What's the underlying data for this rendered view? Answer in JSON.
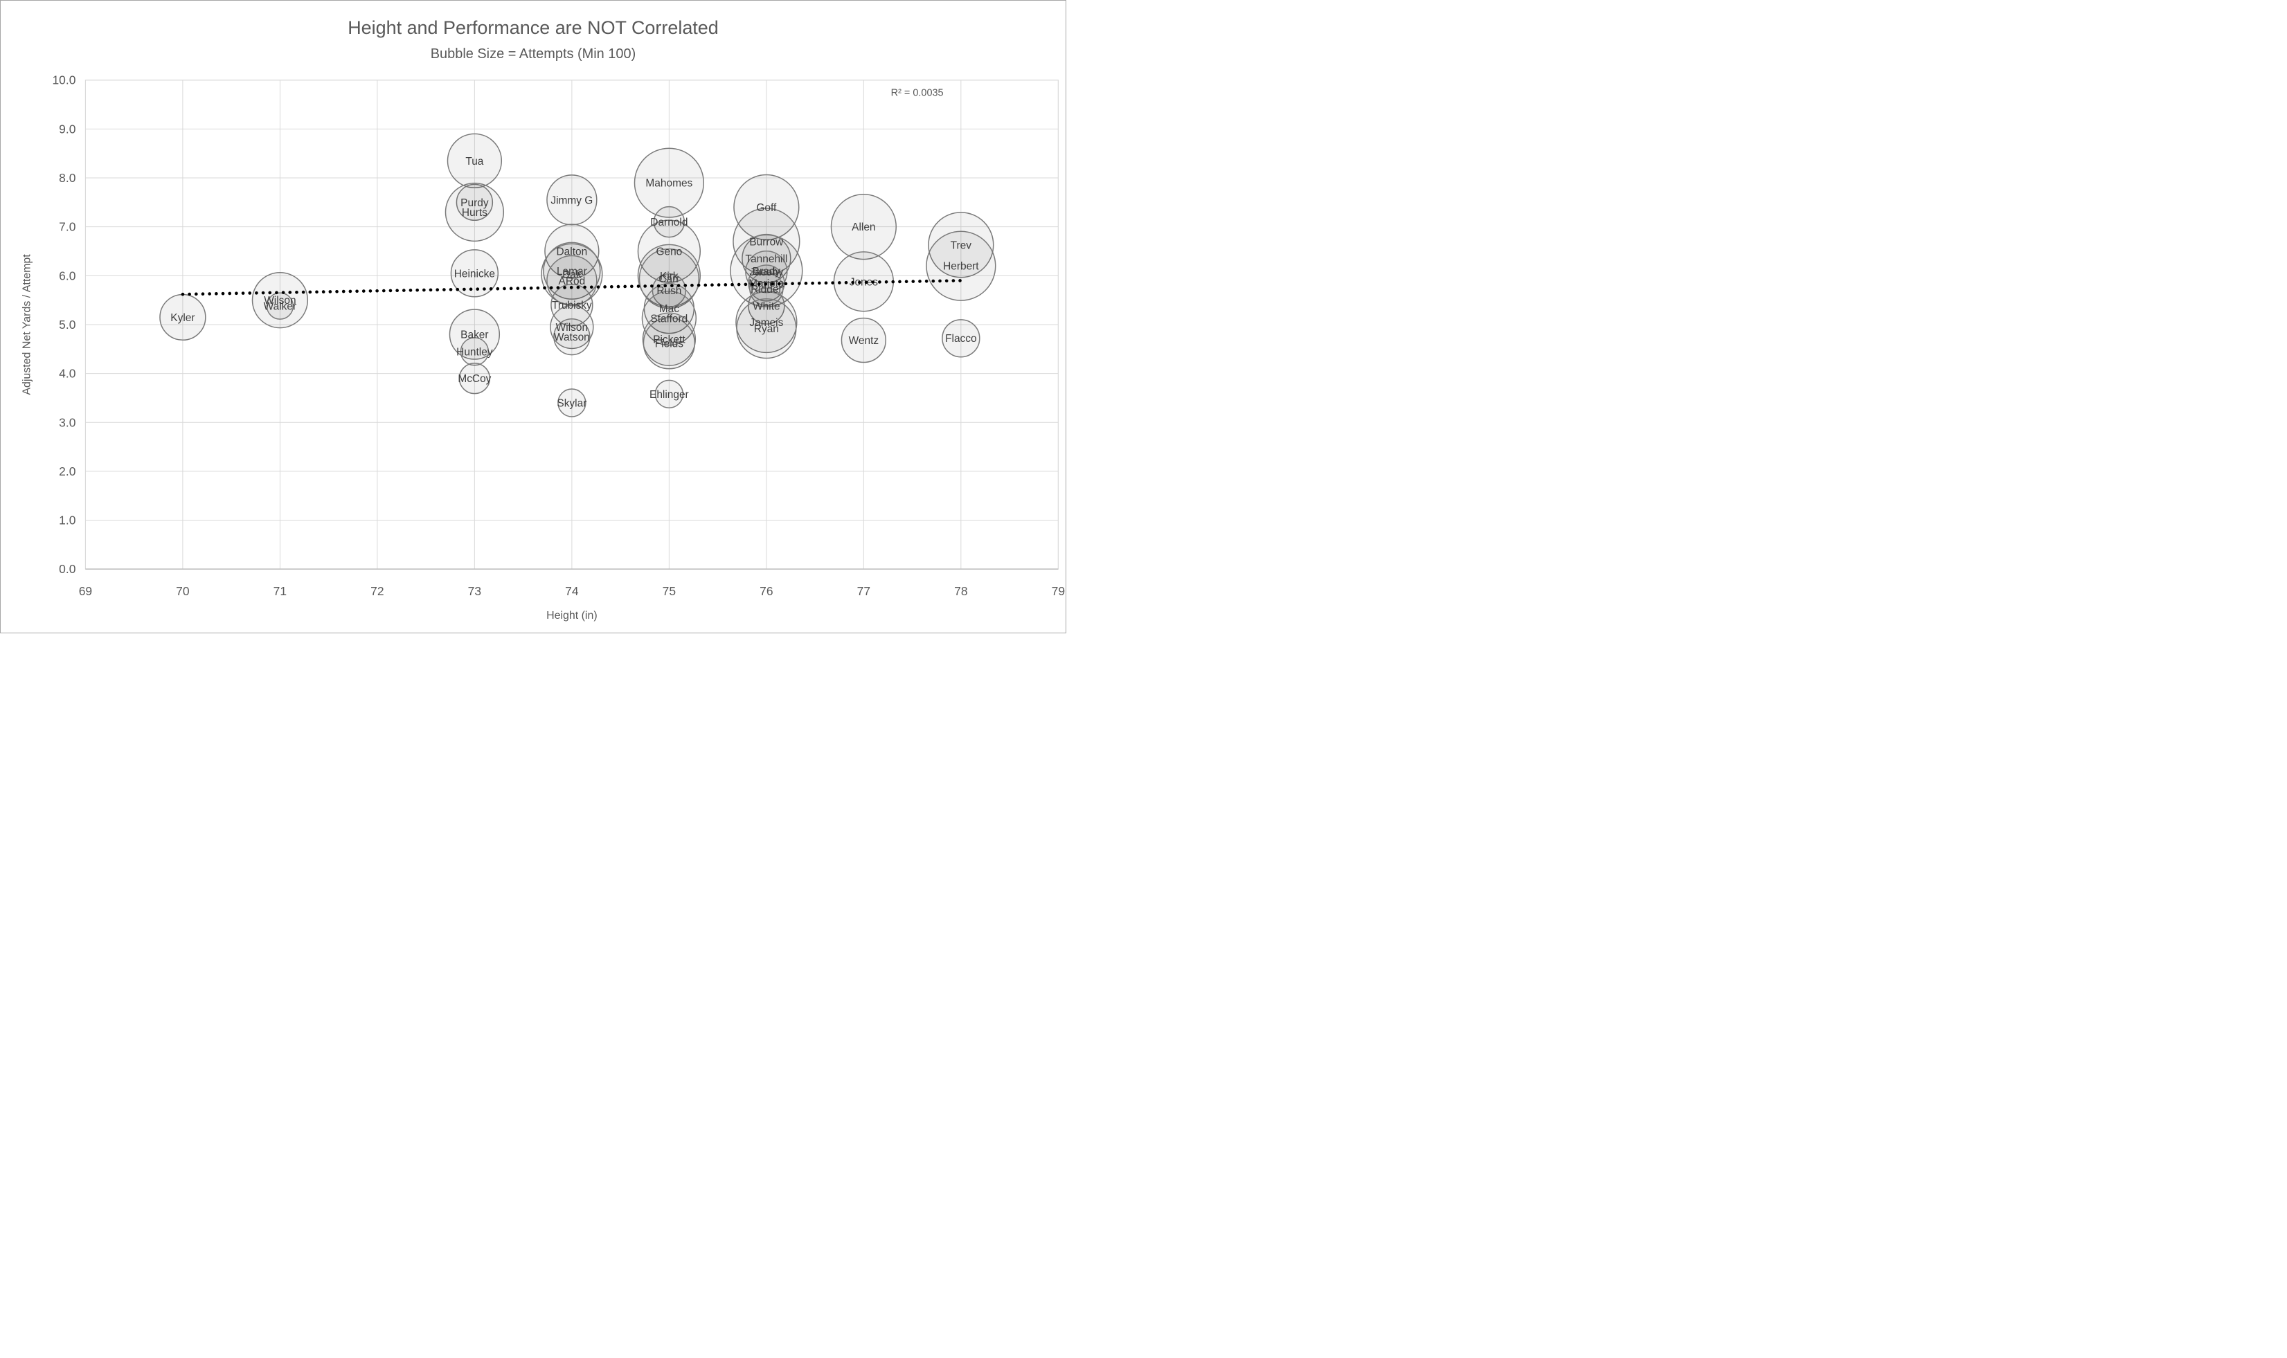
{
  "chart_data": {
    "type": "bubble",
    "title": "Height and Performance are NOT Correlated",
    "subtitle": "Bubble Size = Attempts (Min 100)",
    "xlabel": "Height (in)",
    "ylabel": "Adjusted Net Yards / Attempt",
    "xlim": [
      69,
      79
    ],
    "ylim": [
      0,
      10
    ],
    "grid": true,
    "x_ticks": [
      {
        "value": 69,
        "label": "69"
      },
      {
        "value": 70,
        "label": "70"
      },
      {
        "value": 71,
        "label": "71"
      },
      {
        "value": 72,
        "label": "72"
      },
      {
        "value": 73,
        "label": "73"
      },
      {
        "value": 74,
        "label": "74"
      },
      {
        "value": 75,
        "label": "75"
      },
      {
        "value": 76,
        "label": "76"
      },
      {
        "value": 77,
        "label": "77"
      },
      {
        "value": 78,
        "label": "78"
      },
      {
        "value": 79,
        "label": "79"
      }
    ],
    "y_ticks": [
      {
        "value": 0,
        "label": "0.0"
      },
      {
        "value": 1,
        "label": "1.0"
      },
      {
        "value": 2,
        "label": "2.0"
      },
      {
        "value": 3,
        "label": "3.0"
      },
      {
        "value": 4,
        "label": "4.0"
      },
      {
        "value": 5,
        "label": "5.0"
      },
      {
        "value": 6,
        "label": "6.0"
      },
      {
        "value": 7,
        "label": "7.0"
      },
      {
        "value": 8,
        "label": "8.0"
      },
      {
        "value": 9,
        "label": "9.0"
      },
      {
        "value": 10,
        "label": "10.0"
      }
    ],
    "annotation": {
      "text": "R² = 0.0035",
      "x": 77.55,
      "y": 9.75
    },
    "trendline": {
      "style": "dotted",
      "color": "#000000",
      "x1": 70,
      "y1": 5.62,
      "x2": 78,
      "y2": 5.9
    },
    "points": [
      {
        "label": "Kyler",
        "x": 70,
        "y": 5.15,
        "r": 33
      },
      {
        "label": "Wilson",
        "x": 71,
        "y": 5.5,
        "r": 40
      },
      {
        "label": "Walker",
        "x": 71,
        "y": 5.38,
        "r": 19
      },
      {
        "label": "Tua",
        "x": 73,
        "y": 8.35,
        "r": 39
      },
      {
        "label": "Purdy",
        "x": 73,
        "y": 7.5,
        "r": 26
      },
      {
        "label": "Hurts",
        "x": 73,
        "y": 7.3,
        "r": 42
      },
      {
        "label": "Heinicke",
        "x": 73,
        "y": 6.05,
        "r": 34
      },
      {
        "label": "Baker",
        "x": 73,
        "y": 4.8,
        "r": 36
      },
      {
        "label": "Huntley",
        "x": 73,
        "y": 4.45,
        "r": 20
      },
      {
        "label": "McCoy",
        "x": 73,
        "y": 3.9,
        "r": 22
      },
      {
        "label": "Jimmy G",
        "x": 74,
        "y": 7.55,
        "r": 36
      },
      {
        "label": "Dalton",
        "x": 74,
        "y": 6.5,
        "r": 39
      },
      {
        "label": "Lamar",
        "x": 74,
        "y": 6.1,
        "r": 41
      },
      {
        "label": "Dak",
        "x": 74,
        "y": 6.03,
        "r": 44
      },
      {
        "label": "ARod",
        "x": 74,
        "y": 5.9,
        "r": 36
      },
      {
        "label": "Trubisky",
        "x": 74,
        "y": 5.4,
        "r": 30
      },
      {
        "label": "Wilson",
        "x": 74,
        "y": 4.95,
        "r": 31
      },
      {
        "label": "Watson",
        "x": 74,
        "y": 4.75,
        "r": 26
      },
      {
        "label": "Skylar",
        "x": 74,
        "y": 3.4,
        "r": 20
      },
      {
        "label": "Mahomes",
        "x": 75,
        "y": 7.9,
        "r": 50
      },
      {
        "label": "Darnold",
        "x": 75,
        "y": 7.1,
        "r": 22
      },
      {
        "label": "Geno",
        "x": 75,
        "y": 6.5,
        "r": 45
      },
      {
        "label": "Kirk",
        "x": 75,
        "y": 6.0,
        "r": 45
      },
      {
        "label": "Carr",
        "x": 75,
        "y": 5.94,
        "r": 43
      },
      {
        "label": "Rush",
        "x": 75,
        "y": 5.7,
        "r": 24
      },
      {
        "label": "Mac",
        "x": 75,
        "y": 5.33,
        "r": 36
      },
      {
        "label": "Stafford",
        "x": 75,
        "y": 5.13,
        "r": 39
      },
      {
        "label": "Pickett",
        "x": 75,
        "y": 4.7,
        "r": 38
      },
      {
        "label": "Fields",
        "x": 75,
        "y": 4.62,
        "r": 37
      },
      {
        "label": "Ehlinger",
        "x": 75,
        "y": 3.58,
        "r": 20
      },
      {
        "label": "Goff",
        "x": 76,
        "y": 7.4,
        "r": 47
      },
      {
        "label": "Burrow",
        "x": 76,
        "y": 6.7,
        "r": 48
      },
      {
        "label": "Tannehill",
        "x": 76,
        "y": 6.35,
        "r": 35
      },
      {
        "label": "Brady",
        "x": 76,
        "y": 6.1,
        "r": 52
      },
      {
        "label": "Jacoby",
        "x": 76,
        "y": 6.08,
        "r": 30
      },
      {
        "label": "Mariota",
        "x": 76,
        "y": 5.85,
        "r": 26
      },
      {
        "label": "Ridder",
        "x": 76,
        "y": 5.73,
        "r": 24
      },
      {
        "label": "White",
        "x": 76,
        "y": 5.38,
        "r": 26
      },
      {
        "label": "Jameis",
        "x": 76,
        "y": 5.05,
        "r": 44
      },
      {
        "label": "Ryan",
        "x": 76,
        "y": 4.92,
        "r": 43
      },
      {
        "label": "Allen",
        "x": 77,
        "y": 7.0,
        "r": 47
      },
      {
        "label": "Jones",
        "x": 77,
        "y": 5.88,
        "r": 43
      },
      {
        "label": "Wentz",
        "x": 77,
        "y": 4.68,
        "r": 32
      },
      {
        "label": "Trev",
        "x": 78,
        "y": 6.63,
        "r": 47
      },
      {
        "label": "Herbert",
        "x": 78,
        "y": 6.2,
        "r": 50
      },
      {
        "label": "Flacco",
        "x": 78,
        "y": 4.72,
        "r": 27
      }
    ],
    "colors": {
      "text": "#595959",
      "bubble_label": "#3d3d3d",
      "gridline": "#d9d9d9",
      "axis_line": "#bfbfbf",
      "bubble_stroke": "#7a7a7a",
      "bubble_fill": "rgba(0,0,0,0.05)",
      "trendline": "#000000",
      "background": "#ffffff"
    }
  }
}
